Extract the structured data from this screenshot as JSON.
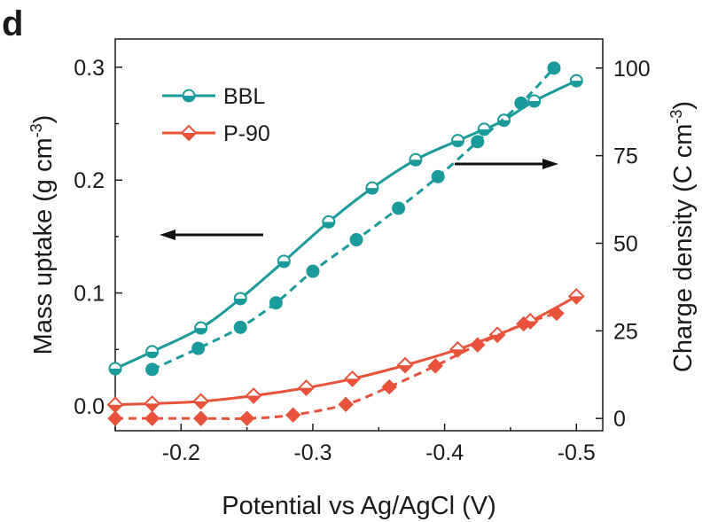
{
  "panel_label": "d",
  "chart_data": {
    "type": "line",
    "title": "",
    "xlabel": "Potential vs Ag/AgCl (V)",
    "ylabel_left": "Mass uptake (g cm",
    "ylabel_left_exp": "-3",
    "ylabel_right": "Charge density (C cm",
    "ylabel_right_exp": "-3",
    "xlim": [
      -0.15,
      -0.52
    ],
    "ylim_left": [
      -0.022,
      0.325
    ],
    "ylim_right": [
      -3.5,
      108.3
    ],
    "x_ticks": [
      -0.2,
      -0.3,
      -0.4,
      -0.5
    ],
    "x_tick_labels": [
      "-0.2",
      "-0.3",
      "-0.4",
      "-0.5"
    ],
    "y_left_ticks": [
      0.0,
      0.1,
      0.2,
      0.3
    ],
    "y_left_tick_labels": [
      "0.0",
      "0.1",
      "0.2",
      "0.3"
    ],
    "y_right_ticks": [
      0,
      25,
      50,
      75,
      100
    ],
    "y_right_tick_labels": [
      "0",
      "25",
      "50",
      "75",
      "100"
    ],
    "grid": false,
    "legend_position": "top-left",
    "legend": [
      {
        "name": "BBL",
        "color": "#1a9a9a",
        "marker": "half-filled-circle"
      },
      {
        "name": "P-90",
        "color": "#e8523a",
        "marker": "half-filled-diamond"
      }
    ],
    "arrows": [
      {
        "direction": "left",
        "indicates": "left axis"
      },
      {
        "direction": "right",
        "indicates": "right axis"
      }
    ],
    "series": [
      {
        "name": "BBL",
        "quantity": "Mass uptake",
        "axis": "left",
        "style": "solid",
        "marker": "half-filled-circle",
        "color": "#1a9a9a",
        "x": [
          -0.15,
          -0.178,
          -0.215,
          -0.245,
          -0.278,
          -0.312,
          -0.345,
          -0.378,
          -0.41,
          -0.43,
          -0.445,
          -0.468,
          -0.5
        ],
        "y": [
          0.033,
          0.048,
          0.069,
          0.095,
          0.128,
          0.163,
          0.193,
          0.218,
          0.235,
          0.245,
          0.253,
          0.27,
          0.288
        ]
      },
      {
        "name": "BBL",
        "quantity": "Charge density",
        "axis": "right",
        "style": "dashed",
        "marker": "filled-circle",
        "color": "#1a9a9a",
        "x": [
          -0.178,
          -0.213,
          -0.245,
          -0.272,
          -0.3,
          -0.333,
          -0.365,
          -0.395,
          -0.425,
          -0.458,
          -0.483
        ],
        "y": [
          14,
          20,
          26,
          33,
          42,
          51,
          60,
          69,
          79,
          90,
          100
        ]
      },
      {
        "name": "P-90",
        "quantity": "Mass uptake",
        "axis": "left",
        "style": "solid",
        "marker": "half-filled-diamond",
        "color": "#e8523a",
        "x": [
          -0.15,
          -0.178,
          -0.215,
          -0.255,
          -0.295,
          -0.33,
          -0.37,
          -0.41,
          -0.44,
          -0.465,
          -0.5
        ],
        "y": [
          0.001,
          0.002,
          0.004,
          0.009,
          0.016,
          0.024,
          0.036,
          0.05,
          0.063,
          0.075,
          0.097
        ]
      },
      {
        "name": "P-90",
        "quantity": "Charge density",
        "axis": "right",
        "style": "dashed",
        "marker": "filled-diamond",
        "color": "#e8523a",
        "x": [
          -0.15,
          -0.178,
          -0.215,
          -0.25,
          -0.285,
          -0.325,
          -0.358,
          -0.393,
          -0.425,
          -0.46,
          -0.485
        ],
        "y": [
          0,
          0,
          0,
          0,
          1,
          4,
          9,
          15,
          21,
          27,
          30
        ]
      }
    ]
  }
}
